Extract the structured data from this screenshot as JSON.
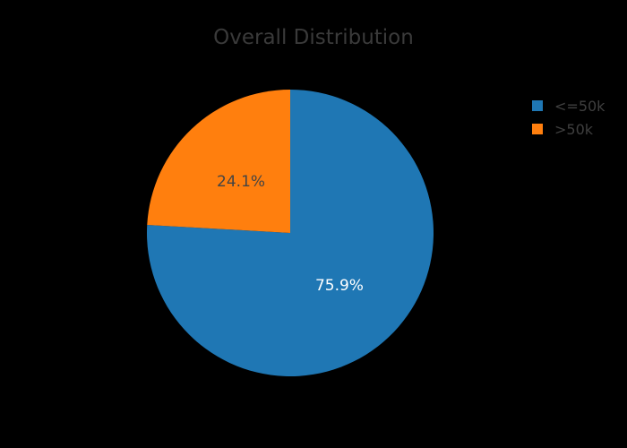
{
  "chart_data": {
    "type": "pie",
    "title": "Overall Distribution",
    "labels": [
      "<=50k",
      ">50k"
    ],
    "values": [
      75.9,
      24.1
    ],
    "value_labels": [
      "75.9%",
      "24.1%"
    ],
    "colors": [
      "#1f77b4",
      "#ff7f0e"
    ],
    "label_colors": [
      "#ffffff",
      "#444444"
    ],
    "legend_position": "top-right",
    "direction": "clockwise",
    "start": "top"
  }
}
